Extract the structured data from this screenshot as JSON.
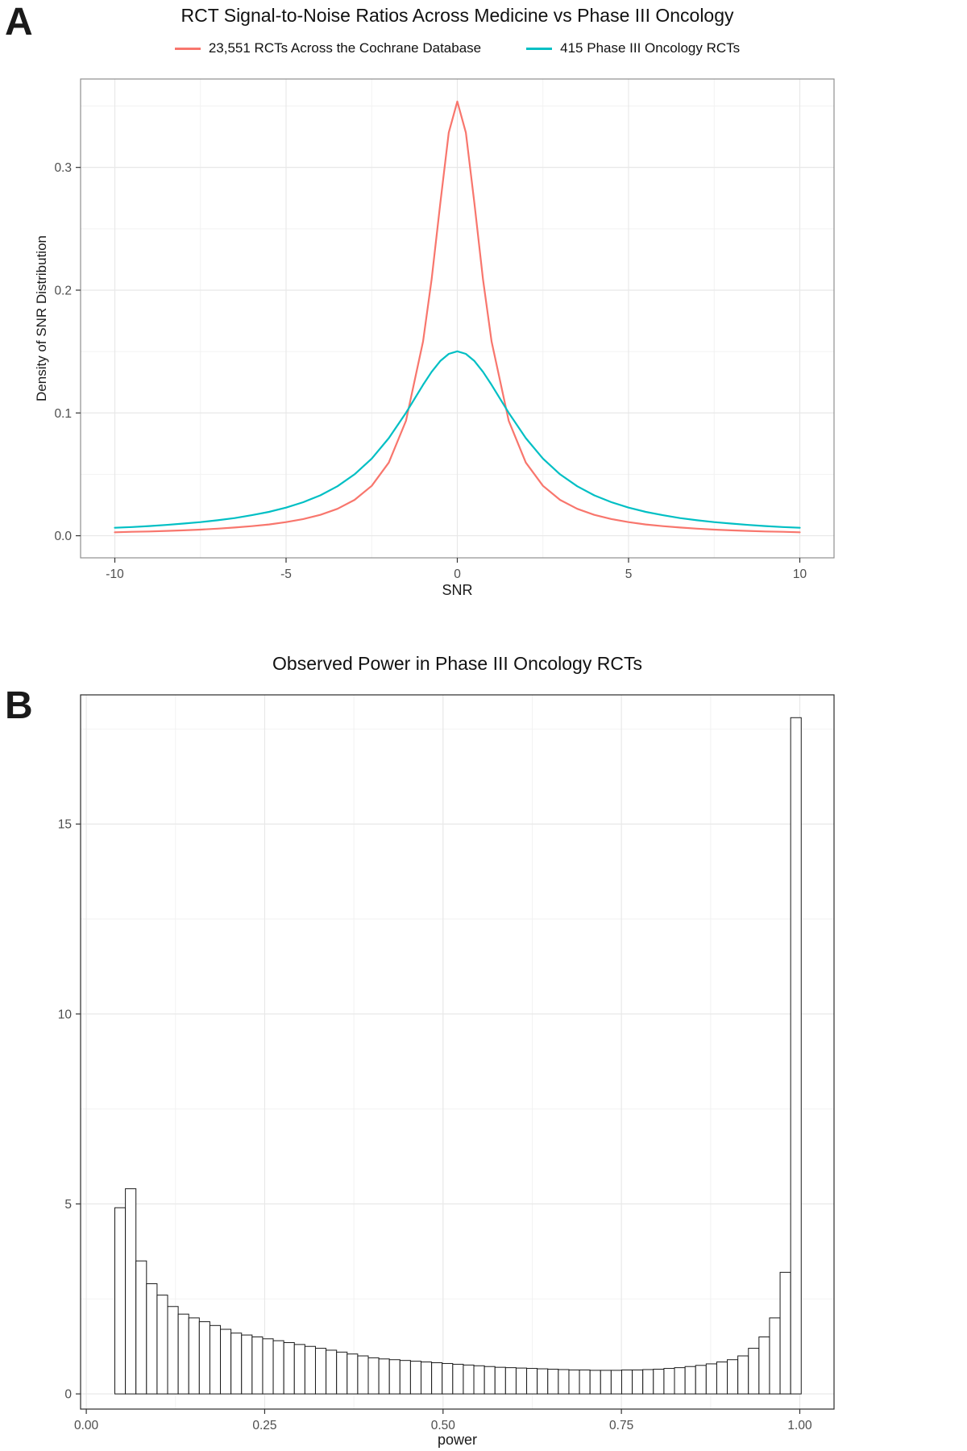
{
  "panel_a": {
    "tag": "A",
    "title": "RCT Signal-to-Noise Ratios Across Medicine vs Phase III Oncology",
    "xlabel": "SNR",
    "ylabel": "Density of SNR Distribution",
    "legend": [
      {
        "key": "cochrane",
        "label": "23,551 RCTs Across the Cochrane Database",
        "color": "#F8766D"
      },
      {
        "key": "oncology",
        "label": "415 Phase III Oncology RCTs",
        "color": "#00BFC4"
      }
    ]
  },
  "panel_b": {
    "tag": "B",
    "title": "Observed Power in Phase III Oncology RCTs",
    "xlabel": "power"
  },
  "chart_data": [
    {
      "type": "line",
      "title": "RCT Signal-to-Noise Ratios Across Medicine vs Phase III Oncology",
      "xlabel": "SNR",
      "ylabel": "Density of SNR Distribution",
      "legend_position": "top",
      "grid": true,
      "xlim": [
        -11,
        11
      ],
      "ylim": [
        -0.018,
        0.372
      ],
      "x_ticks": [
        "-10",
        "-5",
        "0",
        "5",
        "10"
      ],
      "x_tick_values": [
        -10,
        -5,
        0,
        5,
        10
      ],
      "y_ticks": [
        "0.0",
        "0.1",
        "0.2",
        "0.3"
      ],
      "y_tick_values": [
        0,
        0.1,
        0.2,
        0.3
      ],
      "x": [
        -10,
        -9.5,
        -9,
        -8.5,
        -8,
        -7.5,
        -7,
        -6.5,
        -6,
        -5.5,
        -5,
        -4.5,
        -4,
        -3.5,
        -3,
        -2.5,
        -2,
        -1.5,
        -1,
        -0.75,
        -0.5,
        -0.25,
        0,
        0.25,
        0.5,
        0.75,
        1,
        1.5,
        2,
        2.5,
        3,
        3.5,
        4,
        4.5,
        5,
        5.5,
        6,
        6.5,
        7,
        7.5,
        8,
        8.5,
        9,
        9.5,
        10
      ],
      "series": [
        {
          "key": "cochrane",
          "name": "23,551 RCTs Across the Cochrane Database",
          "color": "#F8766D",
          "values": [
            0.0028,
            0.0032,
            0.0035,
            0.0039,
            0.0044,
            0.005,
            0.0058,
            0.0067,
            0.0078,
            0.0092,
            0.0111,
            0.0136,
            0.017,
            0.0219,
            0.0292,
            0.0406,
            0.0596,
            0.0936,
            0.1583,
            0.2087,
            0.2703,
            0.3284,
            0.3537,
            0.3284,
            0.2703,
            0.2087,
            0.1583,
            0.0936,
            0.0596,
            0.0406,
            0.0292,
            0.0219,
            0.017,
            0.0136,
            0.0111,
            0.0092,
            0.0078,
            0.0067,
            0.0058,
            0.005,
            0.0044,
            0.0039,
            0.0035,
            0.0032,
            0.0028
          ]
        },
        {
          "key": "oncology",
          "name": "415 Phase III Oncology RCTs",
          "color": "#00BFC4",
          "values": [
            0.0065,
            0.0071,
            0.0079,
            0.0088,
            0.0099,
            0.0111,
            0.0126,
            0.0144,
            0.0167,
            0.0194,
            0.0229,
            0.0273,
            0.0329,
            0.0403,
            0.05,
            0.0628,
            0.0795,
            0.1001,
            0.1229,
            0.1335,
            0.1423,
            0.1481,
            0.1502,
            0.1481,
            0.1423,
            0.1335,
            0.1229,
            0.1001,
            0.0795,
            0.0628,
            0.05,
            0.0403,
            0.0329,
            0.0273,
            0.0229,
            0.0194,
            0.0167,
            0.0144,
            0.0126,
            0.0111,
            0.0099,
            0.0088,
            0.0079,
            0.0071,
            0.0065
          ]
        }
      ]
    },
    {
      "type": "bar",
      "title": "Observed Power in Phase III Oncology RCTs",
      "xlabel": "power",
      "ylabel": "",
      "grid": true,
      "xlim": [
        -0.008,
        1.048
      ],
      "ylim": [
        -0.4,
        18.4
      ],
      "x_ticks": [
        "0.00",
        "0.25",
        "0.50",
        "0.75",
        "1.00"
      ],
      "x_tick_values": [
        0,
        0.25,
        0.5,
        0.75,
        1
      ],
      "y_ticks": [
        "0",
        "5",
        "10",
        "15"
      ],
      "y_tick_values": [
        0,
        5,
        10,
        15
      ],
      "bin_start": 0.04,
      "bin_width": 0.0148,
      "bar_fill": "#ffffff",
      "bar_stroke": "#1a1a1a",
      "values": [
        4.9,
        5.4,
        3.5,
        2.9,
        2.6,
        2.3,
        2.1,
        2.0,
        1.9,
        1.8,
        1.7,
        1.6,
        1.55,
        1.5,
        1.45,
        1.4,
        1.35,
        1.3,
        1.25,
        1.2,
        1.15,
        1.1,
        1.05,
        1.0,
        0.95,
        0.92,
        0.9,
        0.88,
        0.86,
        0.84,
        0.82,
        0.8,
        0.78,
        0.76,
        0.74,
        0.72,
        0.7,
        0.69,
        0.68,
        0.67,
        0.66,
        0.65,
        0.64,
        0.63,
        0.63,
        0.62,
        0.62,
        0.62,
        0.63,
        0.63,
        0.64,
        0.65,
        0.67,
        0.69,
        0.72,
        0.75,
        0.79,
        0.84,
        0.9,
        1.0,
        1.2,
        1.5,
        2.0,
        3.2,
        17.8
      ]
    }
  ]
}
